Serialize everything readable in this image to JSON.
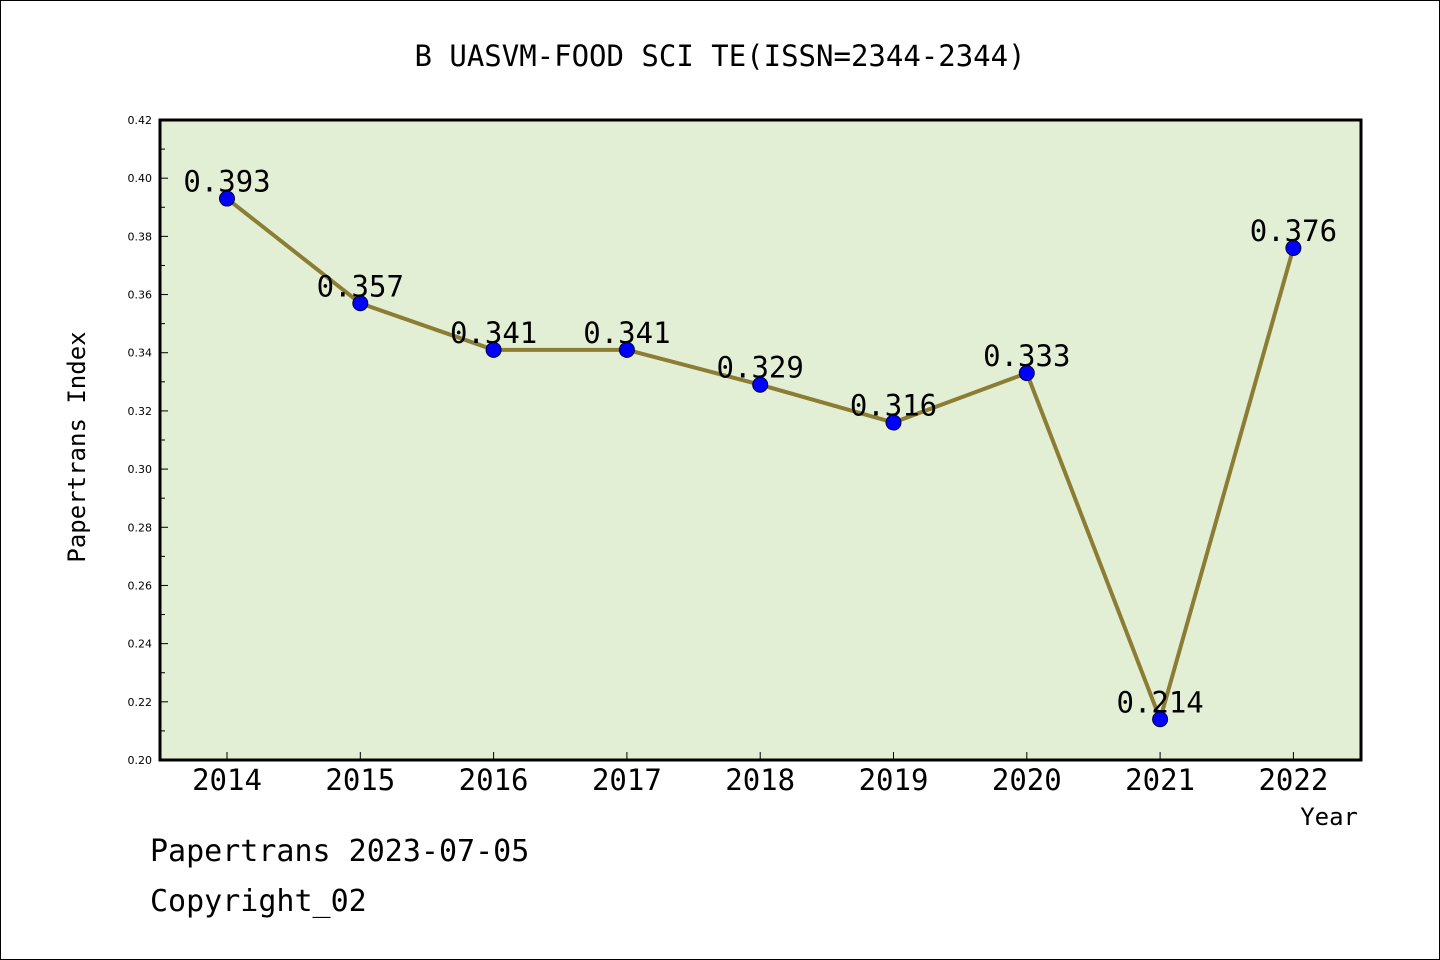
{
  "chart_data": {
    "type": "line",
    "title": "B UASVM-FOOD SCI TE(ISSN=2344-2344)",
    "xlabel": "Year",
    "ylabel": "Papertrans Index",
    "categories": [
      "2014",
      "2015",
      "2016",
      "2017",
      "2018",
      "2019",
      "2020",
      "2021",
      "2022"
    ],
    "values": [
      0.393,
      0.357,
      0.341,
      0.341,
      0.329,
      0.316,
      0.333,
      0.214,
      0.376
    ],
    "data_labels": [
      "0.393",
      "0.357",
      "0.341",
      "0.341",
      "0.329",
      "0.316",
      "0.333",
      "0.214",
      "0.376"
    ],
    "ylim": [
      0.2,
      0.42
    ],
    "yticks": [
      "0.20",
      "0.22",
      "0.24",
      "0.26",
      "0.28",
      "0.30",
      "0.32",
      "0.34",
      "0.36",
      "0.38",
      "0.40",
      "0.42"
    ],
    "grid": false,
    "colors": {
      "plot_background": "#e2efd5",
      "line": "#8b7d33",
      "marker": "#0000ff"
    }
  },
  "footer": {
    "stamp": "Papertrans 2023-07-05",
    "copyright": "Copyright_02"
  }
}
